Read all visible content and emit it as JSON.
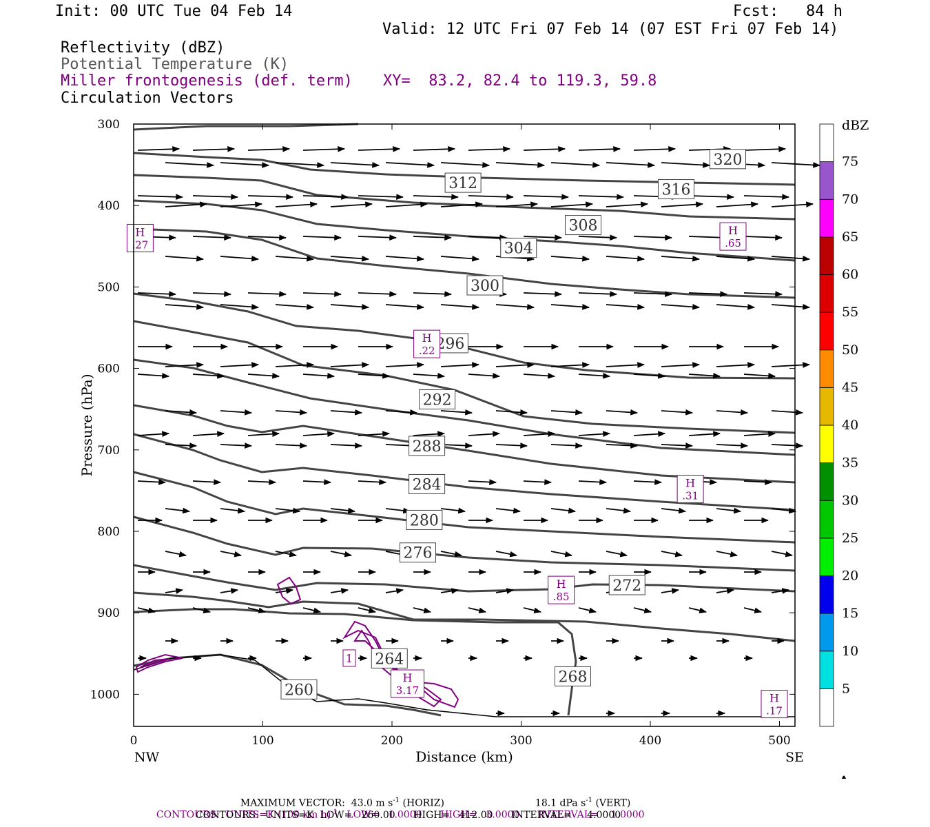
{
  "header": {
    "init": "Init: 00 UTC Tue 04 Feb 14",
    "fcst": "Fcst:   84 h",
    "valid": "Valid: 12 UTC Fri 07 Feb 14 (07 EST Fri 07 Feb 14)",
    "field1": "Reflectivity (dBZ)",
    "field2": "Potential Temperature (K)",
    "field3": "Miller frontogenesis (def. term)",
    "xy": "XY=  83.2, 82.4 to 119.3, 59.8",
    "field4": "Circulation Vectors"
  },
  "colors": {
    "theta": "#444444",
    "fronto": "#800080",
    "field2_text": "#555555"
  },
  "chart_data": {
    "type": "cross-section",
    "xlabel": "Distance (km)",
    "ylabel": "Pressure (hPa)",
    "xlim": [
      0,
      512
    ],
    "ylim": [
      1030,
      300
    ],
    "x_ticks": [
      "0",
      "100",
      "200",
      "300",
      "400",
      "500"
    ],
    "y_ticks": [
      "300",
      "400",
      "500",
      "600",
      "700",
      "800",
      "900",
      "1000"
    ],
    "left_end": "NW",
    "right_end": "SE",
    "theta_contour_labels": [
      {
        "value": "320",
        "x": 460,
        "p": 343
      },
      {
        "value": "316",
        "x": 420,
        "p": 380
      },
      {
        "value": "312",
        "x": 255,
        "p": 372
      },
      {
        "value": "308",
        "x": 348,
        "p": 424
      },
      {
        "value": "304",
        "x": 298,
        "p": 452
      },
      {
        "value": "300",
        "x": 272,
        "p": 498
      },
      {
        "value": "296",
        "x": 245,
        "p": 569
      },
      {
        "value": "292",
        "x": 235,
        "p": 638
      },
      {
        "value": "288",
        "x": 227,
        "p": 695
      },
      {
        "value": "284",
        "x": 227,
        "p": 742
      },
      {
        "value": "280",
        "x": 225,
        "p": 786
      },
      {
        "value": "276",
        "x": 220,
        "p": 826
      },
      {
        "value": "272",
        "x": 382,
        "p": 866
      },
      {
        "value": "268",
        "x": 340,
        "p": 978
      },
      {
        "value": "264",
        "x": 198,
        "p": 956
      },
      {
        "value": "260",
        "x": 128,
        "p": 994
      }
    ],
    "fronto_maxima": [
      {
        "label": "H",
        "value": ".27",
        "x": 5,
        "p": 440
      },
      {
        "label": "H",
        "value": ".65",
        "x": 464,
        "p": 438
      },
      {
        "label": "H",
        "value": ".22",
        "x": 227,
        "p": 570
      },
      {
        "label": "H",
        "value": ".31",
        "x": 431,
        "p": 748
      },
      {
        "label": "H",
        "value": ".85",
        "x": 331,
        "p": 872
      },
      {
        "label": "H",
        "value": "3.17",
        "x": 212,
        "p": 987
      },
      {
        "label": "H",
        "value": ".17",
        "x": 496,
        "p": 1012
      }
    ],
    "fronto_contour_label": "1",
    "colorbar": {
      "unit": "dBZ",
      "levels": [
        "5",
        "10",
        "15",
        "20",
        "25",
        "30",
        "35",
        "40",
        "45",
        "50",
        "55",
        "60",
        "65",
        "70",
        "75"
      ],
      "colors": [
        "#ffffff",
        "#00e0e0",
        "#0099ee",
        "#0000ee",
        "#00ee00",
        "#00c800",
        "#009000",
        "#ffff00",
        "#e6b800",
        "#ff8c00",
        "#ff0000",
        "#dd0000",
        "#bb0000",
        "#ff00ff",
        "#9955cc",
        "#ffffff"
      ]
    },
    "theta_levels": [
      260,
      264,
      268,
      272,
      276,
      280,
      284,
      288,
      292,
      296,
      300,
      304,
      308,
      312,
      316,
      320
    ]
  },
  "footer": {
    "maxvec": "MAXIMUM VECTOR:  43.0 m s",
    "maxvec_unit": "-1",
    "maxvec_horiz": " (HORIZ)",
    "maxvec_vert": "18.1 dPa s",
    "maxvec_vert_unit": "-1",
    "maxvec_vert_tail": " (VERT)",
    "contours1": "CONTOURS:  UNITS=K (100 km h)",
    "contours1_exp": "-1",
    "contours1_tail": "   LOW=   1.0000      HIGH=   3.0000      INTERVAL=    1.0000",
    "contours2": "CONTOURS:  UNITS=K  LOW=   260.00      HIGH=   412.00      INTERVAL=     4.0000"
  }
}
